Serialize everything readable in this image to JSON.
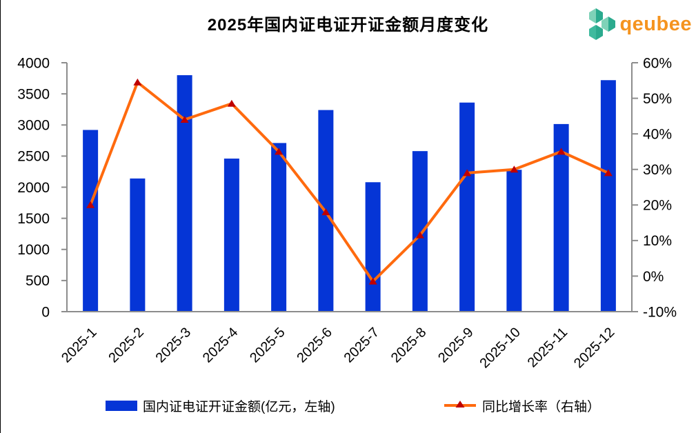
{
  "header": {
    "logo_text": "qeubee"
  },
  "colors": {
    "bar": "#0535D6",
    "line": "#FF6A0E",
    "marker": "#BF0000",
    "axis": "#8c8c8c",
    "text": "#000000",
    "logo_text": "#F5941F",
    "logo_teal_light": "#7FD2B8",
    "logo_teal_mid": "#3FBA9E",
    "logo_teal_dark": "#2BAA8E"
  },
  "chart_data": {
    "type": "bar+line",
    "title": "2025年国内证电证开证金额月度变化",
    "categories": [
      "2025-1",
      "2025-2",
      "2025-3",
      "2025-4",
      "2025-5",
      "2025-6",
      "2025-7",
      "2025-8",
      "2025-9",
      "2025-10",
      "2025-11",
      "2025-12"
    ],
    "series": [
      {
        "name": "国内证电证开证金额(亿元，左轴)",
        "type": "bar",
        "axis": "left",
        "unit": "亿元",
        "values": [
          2920,
          2140,
          3800,
          2460,
          2710,
          3240,
          2080,
          2580,
          3360,
          2280,
          3015,
          3720
        ]
      },
      {
        "name": "同比增长率（右轴）",
        "type": "line",
        "axis": "right",
        "unit": "%",
        "values": [
          20,
          54.5,
          44,
          48.5,
          35,
          18,
          -1.5,
          11.5,
          29,
          30,
          35,
          29
        ]
      }
    ],
    "left_axis": {
      "min": 0,
      "max": 4000,
      "step": 500,
      "tick_labels": [
        "0",
        "500",
        "1000",
        "1500",
        "2000",
        "2500",
        "3000",
        "3500",
        "4000"
      ]
    },
    "right_axis": {
      "min": -10,
      "max": 60,
      "step": 10,
      "tick_labels": [
        "-10%",
        "0%",
        "10%",
        "20%",
        "30%",
        "40%",
        "50%",
        "60%"
      ]
    },
    "grid": false,
    "legend_position": "bottom"
  }
}
